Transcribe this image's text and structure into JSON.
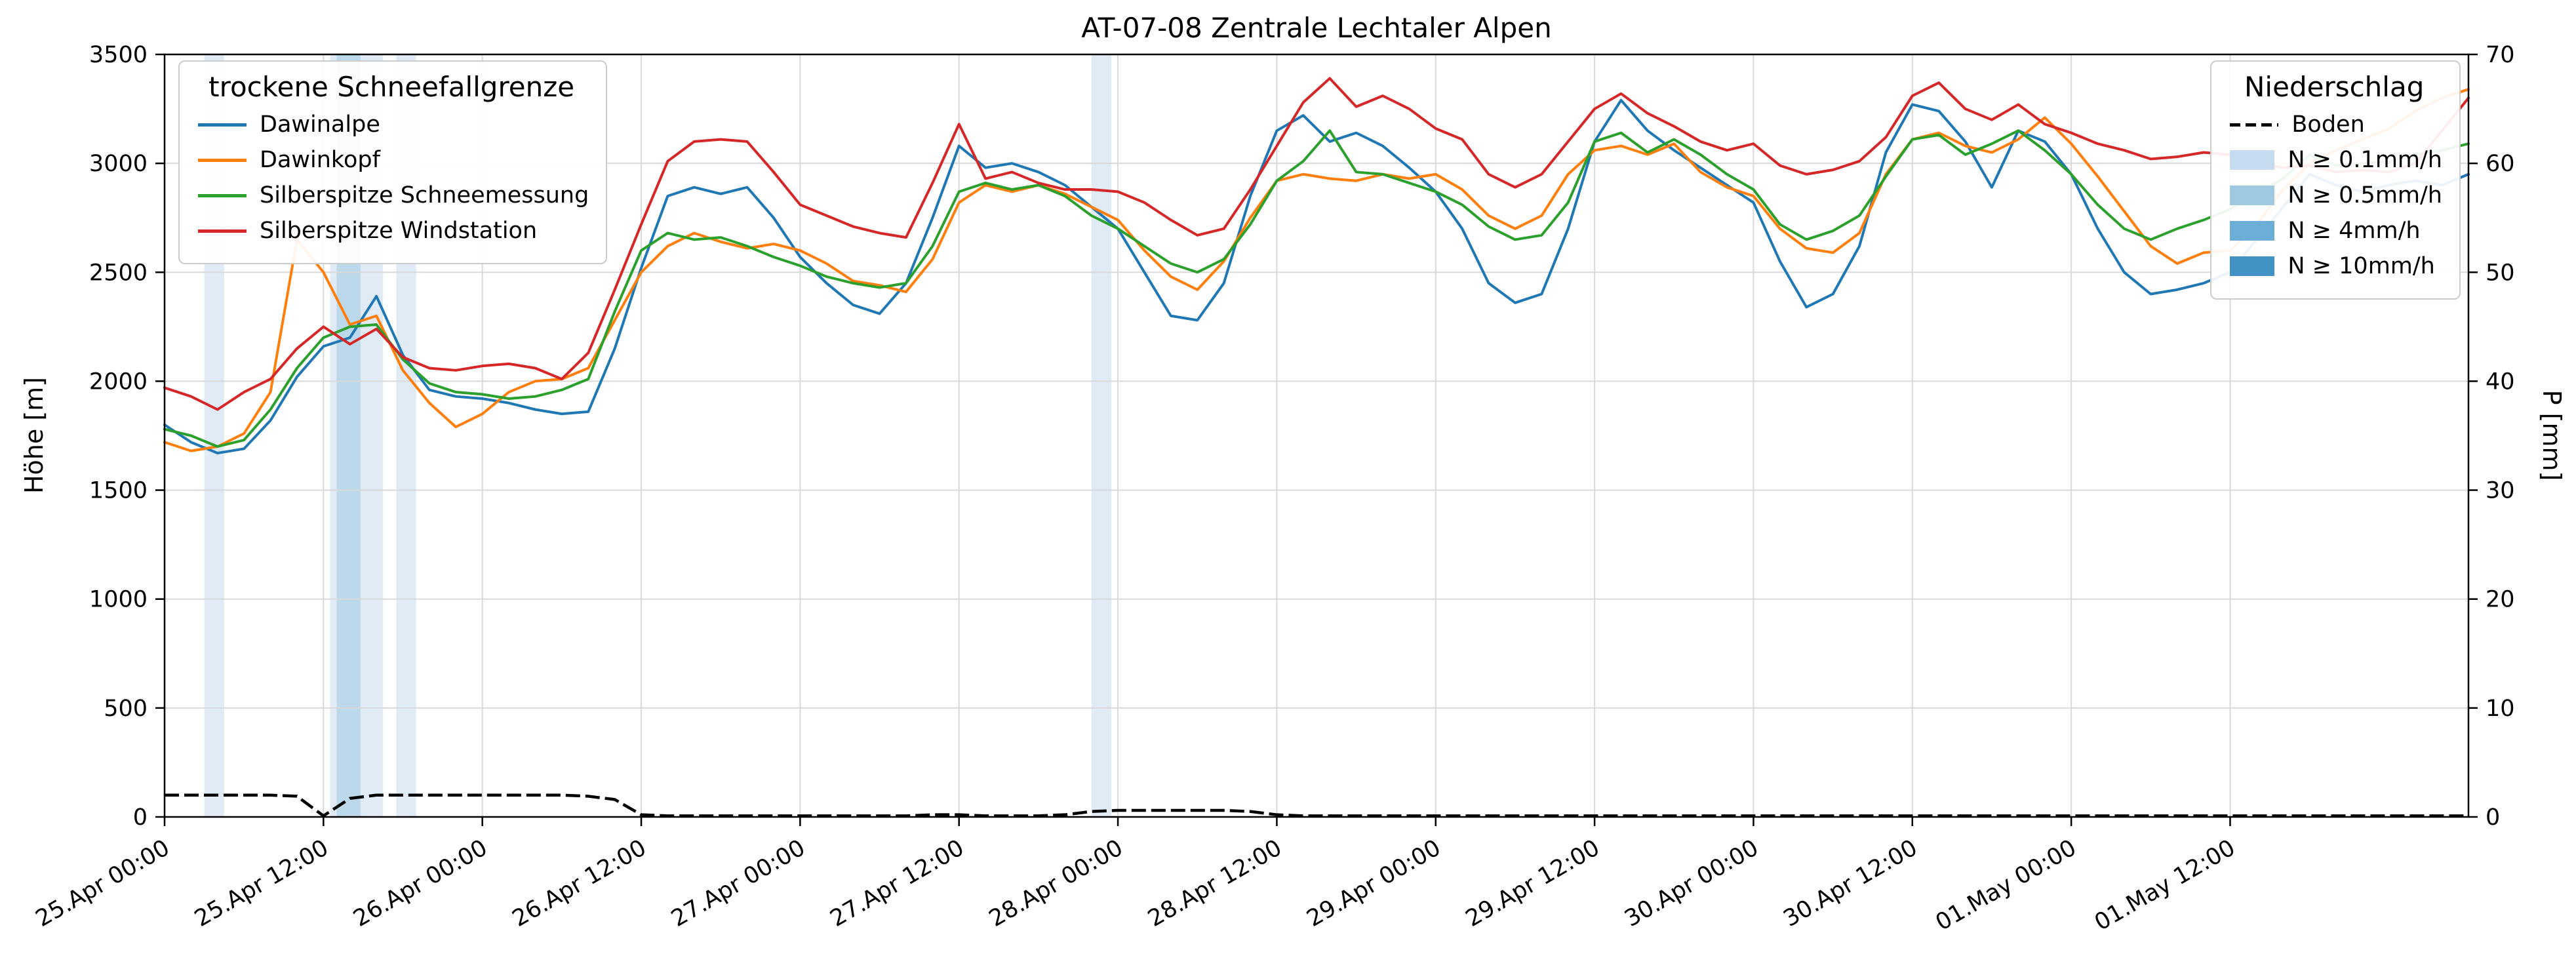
{
  "chart_data": {
    "type": "line",
    "title": "AT-07-08 Zentrale Lechtaler Alpen",
    "ylabel_left": "Höhe [m]",
    "ylabel_right": "P [mm]",
    "ylim_left": [
      0,
      3500
    ],
    "ylim_right": [
      0,
      70
    ],
    "xlim_hours": [
      0,
      174
    ],
    "x_axis_origin": "25.Apr 00:00",
    "grid": true,
    "y_left_ticks": [
      0,
      500,
      1000,
      1500,
      2000,
      2500,
      3000,
      3500
    ],
    "y_right_ticks": [
      0,
      10,
      20,
      30,
      40,
      50,
      60,
      70
    ],
    "x_tick_hours": [
      0,
      12,
      24,
      36,
      48,
      60,
      72,
      84,
      96,
      108,
      120,
      132,
      144,
      156
    ],
    "x_tick_labels": [
      "25.Apr 00:00",
      "25.Apr 12:00",
      "26.Apr 00:00",
      "26.Apr 12:00",
      "27.Apr 00:00",
      "27.Apr 12:00",
      "28.Apr 00:00",
      "28.Apr 12:00",
      "29.Apr 00:00",
      "29.Apr 12:00",
      "30.Apr 00:00",
      "30.Apr 12:00",
      "01.May 00:00",
      "01.May 12:00"
    ],
    "x_hours": [
      0,
      2,
      4,
      6,
      8,
      10,
      12,
      14,
      16,
      18,
      20,
      22,
      24,
      26,
      28,
      30,
      32,
      34,
      36,
      38,
      40,
      42,
      44,
      46,
      48,
      50,
      52,
      54,
      56,
      58,
      60,
      62,
      64,
      66,
      68,
      70,
      72,
      74,
      76,
      78,
      80,
      82,
      84,
      86,
      88,
      90,
      92,
      94,
      96,
      98,
      100,
      102,
      104,
      106,
      108,
      110,
      112,
      114,
      116,
      118,
      120,
      122,
      124,
      126,
      128,
      130,
      132,
      134,
      136,
      138,
      140,
      142,
      144,
      146,
      148,
      150,
      152,
      154,
      156,
      158,
      160,
      162,
      164,
      166,
      168,
      170,
      172,
      174
    ],
    "series": [
      {
        "name": "Dawinalpe",
        "color": "#1f77b4",
        "values": [
          1800,
          1720,
          1670,
          1690,
          1820,
          2020,
          2160,
          2200,
          2390,
          2120,
          1960,
          1930,
          1920,
          1900,
          1870,
          1850,
          1860,
          2150,
          2520,
          2850,
          2890,
          2860,
          2890,
          2750,
          2570,
          2450,
          2350,
          2310,
          2450,
          2750,
          3080,
          2980,
          3000,
          2960,
          2900,
          2800,
          2700,
          2500,
          2300,
          2280,
          2450,
          2850,
          3150,
          3220,
          3100,
          3140,
          3080,
          2980,
          2870,
          2700,
          2450,
          2360,
          2400,
          2700,
          3100,
          3290,
          3150,
          3060,
          2980,
          2900,
          2820,
          2550,
          2340,
          2400,
          2620,
          3050,
          3270,
          3240,
          3100,
          2890,
          3150,
          3100,
          2950,
          2700,
          2500,
          2400,
          2420,
          2450,
          2500,
          2650,
          2800,
          2950,
          2900,
          2870,
          2900,
          2920,
          2900,
          2950
        ]
      },
      {
        "name": "Dawinkopf",
        "color": "#ff7f0e",
        "values": [
          1720,
          1680,
          1700,
          1760,
          1950,
          2650,
          2500,
          2260,
          2300,
          2050,
          1900,
          1790,
          1850,
          1950,
          2000,
          2010,
          2060,
          2280,
          2500,
          2620,
          2680,
          2640,
          2610,
          2630,
          2600,
          2540,
          2460,
          2440,
          2410,
          2560,
          2820,
          2900,
          2870,
          2900,
          2860,
          2800,
          2740,
          2600,
          2480,
          2420,
          2550,
          2750,
          2920,
          2950,
          2930,
          2920,
          2950,
          2930,
          2950,
          2880,
          2760,
          2700,
          2760,
          2950,
          3060,
          3080,
          3040,
          3090,
          2960,
          2890,
          2850,
          2700,
          2610,
          2590,
          2680,
          2950,
          3110,
          3140,
          3080,
          3050,
          3110,
          3210,
          3090,
          2940,
          2780,
          2620,
          2540,
          2590,
          2600,
          2720,
          2880,
          3000,
          3060,
          3110,
          3160,
          3240,
          3300,
          3340
        ]
      },
      {
        "name": "Silberspitze Schneemessung",
        "color": "#2ca02c",
        "values": [
          1780,
          1750,
          1700,
          1730,
          1870,
          2060,
          2200,
          2250,
          2260,
          2100,
          1990,
          1950,
          1940,
          1920,
          1930,
          1960,
          2010,
          2320,
          2600,
          2680,
          2650,
          2660,
          2620,
          2570,
          2530,
          2480,
          2450,
          2430,
          2450,
          2620,
          2870,
          2910,
          2880,
          2900,
          2850,
          2760,
          2700,
          2620,
          2540,
          2500,
          2560,
          2720,
          2920,
          3010,
          3150,
          2960,
          2950,
          2910,
          2870,
          2810,
          2710,
          2650,
          2670,
          2820,
          3100,
          3140,
          3050,
          3110,
          3040,
          2950,
          2880,
          2720,
          2650,
          2690,
          2760,
          2940,
          3110,
          3130,
          3040,
          3090,
          3150,
          3060,
          2950,
          2810,
          2700,
          2650,
          2700,
          2740,
          2790,
          2860,
          2930,
          3040,
          2990,
          3000,
          3010,
          3040,
          3060,
          3090
        ]
      },
      {
        "name": "Silberspitze Windstation",
        "color": "#d62728",
        "values": [
          1970,
          1930,
          1870,
          1950,
          2010,
          2150,
          2250,
          2170,
          2240,
          2110,
          2060,
          2050,
          2070,
          2080,
          2060,
          2010,
          2130,
          2420,
          2720,
          3010,
          3100,
          3110,
          3100,
          2960,
          2810,
          2760,
          2710,
          2680,
          2660,
          2910,
          3180,
          2930,
          2960,
          2910,
          2880,
          2880,
          2870,
          2820,
          2740,
          2670,
          2700,
          2880,
          3080,
          3280,
          3390,
          3260,
          3310,
          3250,
          3160,
          3110,
          2950,
          2890,
          2950,
          3100,
          3250,
          3320,
          3230,
          3170,
          3100,
          3060,
          3090,
          2990,
          2950,
          2970,
          3010,
          3120,
          3310,
          3370,
          3250,
          3200,
          3270,
          3180,
          3140,
          3090,
          3060,
          3020,
          3030,
          3050,
          3040,
          3000,
          2980,
          2990,
          2960,
          2970,
          2960,
          3000,
          3150,
          3300
        ]
      }
    ],
    "boden": {
      "name": "Boden",
      "color": "#000000",
      "style": "dashed",
      "axis": "right",
      "values": [
        2.0,
        2.0,
        2.0,
        2.0,
        2.0,
        1.9,
        0.1,
        1.7,
        2.0,
        2.0,
        2.0,
        2.0,
        2.0,
        2.0,
        2.0,
        2.0,
        1.9,
        1.6,
        0.2,
        0.1,
        0.1,
        0.1,
        0.1,
        0.1,
        0.1,
        0.1,
        0.1,
        0.1,
        0.1,
        0.2,
        0.2,
        0.1,
        0.1,
        0.1,
        0.2,
        0.5,
        0.6,
        0.6,
        0.6,
        0.6,
        0.6,
        0.5,
        0.2,
        0.1,
        0.1,
        0.1,
        0.1,
        0.1,
        0.1,
        0.1,
        0.1,
        0.1,
        0.1,
        0.1,
        0.1,
        0.1,
        0.1,
        0.1,
        0.1,
        0.1,
        0.1,
        0.1,
        0.1,
        0.1,
        0.1,
        0.1,
        0.1,
        0.1,
        0.1,
        0.1,
        0.1,
        0.1,
        0.1,
        0.1,
        0.1,
        0.1,
        0.1,
        0.1,
        0.1,
        0.1,
        0.1,
        0.1,
        0.1,
        0.1,
        0.1,
        0.1,
        0.1,
        0.1
      ]
    },
    "precip_bands": [
      {
        "start_h": 3.0,
        "end_h": 4.5,
        "level": "N ≥ 0.1mm/h",
        "color": "#c6dbef"
      },
      {
        "start_h": 12.5,
        "end_h": 16.5,
        "level": "N ≥ 0.1mm/h",
        "color": "#c6dbef"
      },
      {
        "start_h": 13.0,
        "end_h": 14.8,
        "level": "N ≥ 0.5mm/h",
        "color": "#9ecae1"
      },
      {
        "start_h": 17.5,
        "end_h": 19.0,
        "level": "N ≥ 0.1mm/h",
        "color": "#c6dbef"
      },
      {
        "start_h": 70.0,
        "end_h": 71.5,
        "level": "N ≥ 0.1mm/h",
        "color": "#c6dbef"
      }
    ]
  },
  "legend_snowline": {
    "title": "trockene Schneefallgrenze",
    "entries": [
      {
        "label": "Dawinalpe",
        "color": "#1f77b4"
      },
      {
        "label": "Dawinkopf",
        "color": "#ff7f0e"
      },
      {
        "label": "Silberspitze Schneemessung",
        "color": "#2ca02c"
      },
      {
        "label": "Silberspitze Windstation",
        "color": "#d62728"
      }
    ]
  },
  "legend_precip": {
    "title": "Niederschlag",
    "line_entry": {
      "label": "Boden",
      "color": "#000000"
    },
    "patch_entries": [
      {
        "label": "N ≥ 0.1mm/h",
        "color": "#c6dbef"
      },
      {
        "label": "N ≥ 0.5mm/h",
        "color": "#9ecae1"
      },
      {
        "label": "N ≥ 4mm/h",
        "color": "#6baed6"
      },
      {
        "label": "N ≥ 10mm/h",
        "color": "#4292c6"
      }
    ]
  },
  "colors": {
    "grid": "#d9d9d9",
    "spine": "#000000",
    "background": "#ffffff"
  }
}
